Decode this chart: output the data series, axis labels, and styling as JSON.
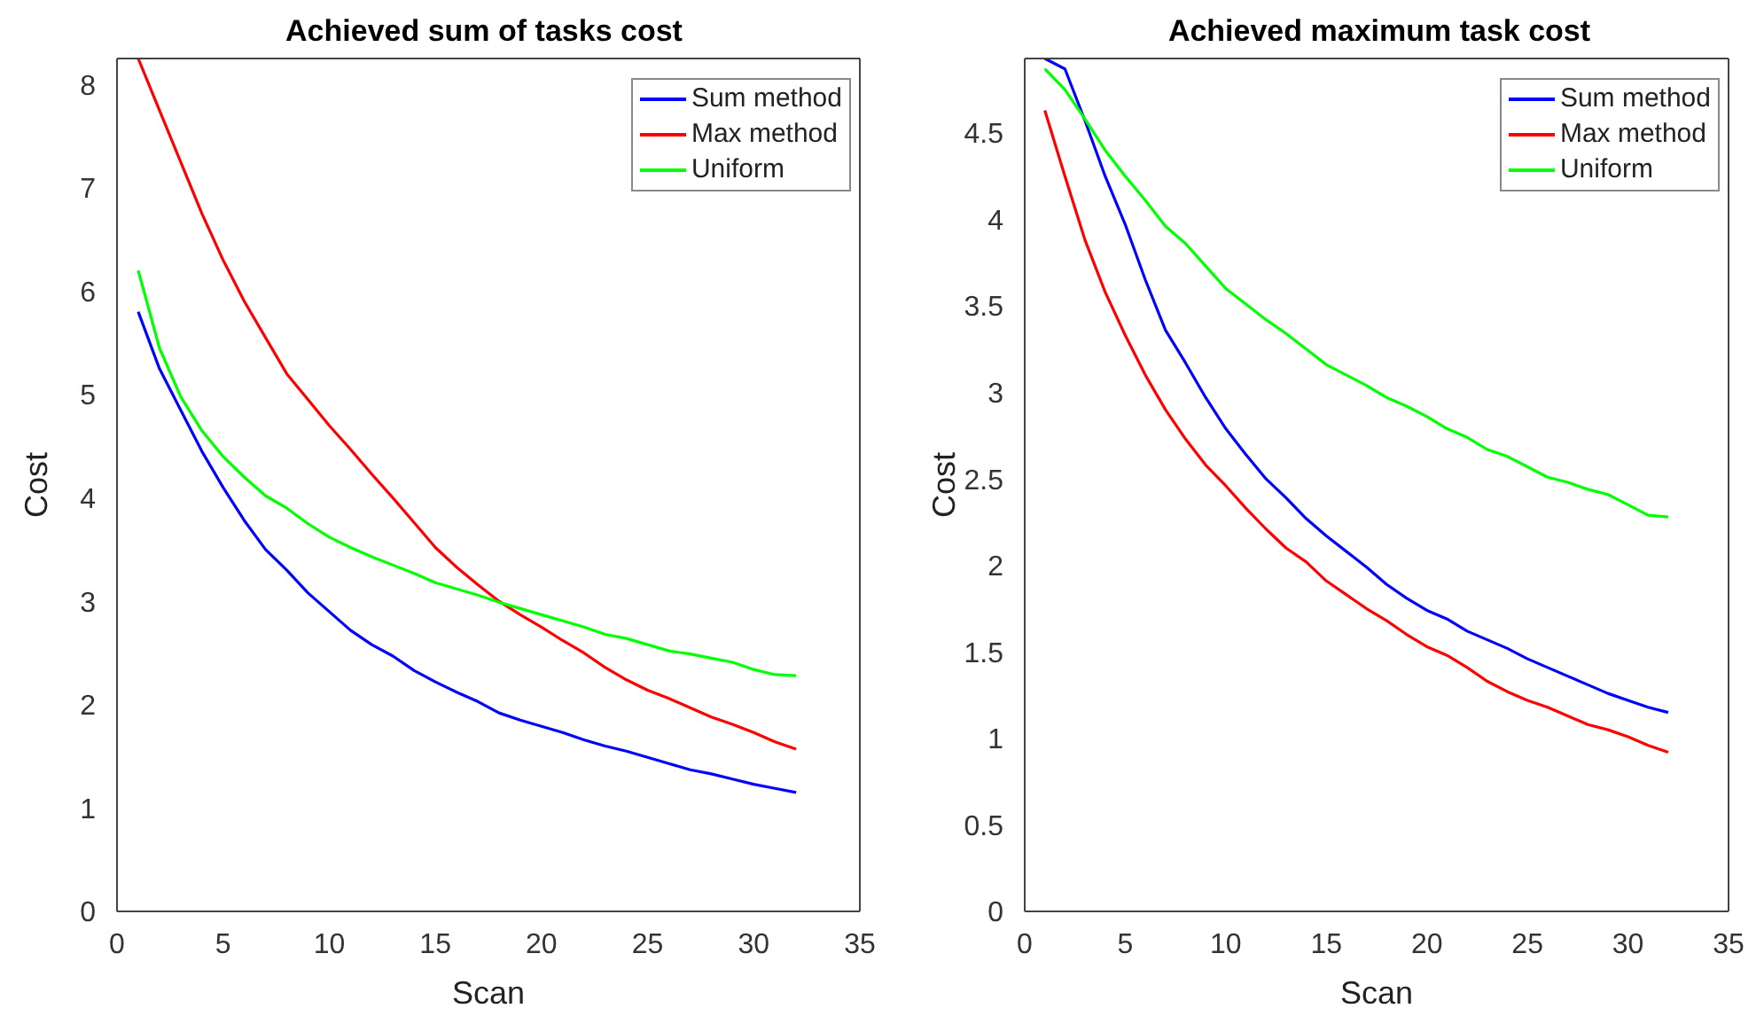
{
  "chart_data": [
    {
      "type": "line",
      "title": "Achieved sum of tasks cost",
      "xlabel": "Scan",
      "ylabel": "Cost",
      "x": [
        1,
        2,
        3,
        4,
        5,
        6,
        7,
        8,
        9,
        10,
        11,
        12,
        13,
        14,
        15,
        16,
        17,
        18,
        19,
        20,
        21,
        22,
        23,
        24,
        25,
        26,
        27,
        28,
        29,
        30,
        31,
        32
      ],
      "series": [
        {
          "name": "Sum method",
          "color": "#0000ff",
          "values": [
            5.8,
            5.25,
            4.85,
            4.45,
            4.1,
            3.78,
            3.5,
            3.3,
            3.08,
            2.9,
            2.72,
            2.58,
            2.47,
            2.33,
            2.22,
            2.12,
            2.03,
            1.92,
            1.85,
            1.79,
            1.73,
            1.66,
            1.6,
            1.55,
            1.49,
            1.43,
            1.37,
            1.33,
            1.28,
            1.23,
            1.19,
            1.15
          ]
        },
        {
          "name": "Max method",
          "color": "#ff0000",
          "values": [
            8.25,
            7.75,
            7.25,
            6.75,
            6.3,
            5.9,
            5.55,
            5.2,
            4.95,
            4.7,
            4.47,
            4.23,
            4.0,
            3.76,
            3.52,
            3.33,
            3.16,
            3.0,
            2.87,
            2.75,
            2.62,
            2.5,
            2.36,
            2.24,
            2.14,
            2.06,
            1.97,
            1.88,
            1.81,
            1.73,
            1.64,
            1.57
          ]
        },
        {
          "name": "Uniform",
          "color": "#00ff00",
          "values": [
            6.2,
            5.45,
            4.98,
            4.65,
            4.4,
            4.2,
            4.02,
            3.9,
            3.75,
            3.62,
            3.52,
            3.43,
            3.35,
            3.27,
            3.18,
            3.12,
            3.06,
            2.99,
            2.93,
            2.87,
            2.81,
            2.75,
            2.68,
            2.64,
            2.58,
            2.52,
            2.49,
            2.45,
            2.41,
            2.34,
            2.29,
            2.28
          ]
        }
      ],
      "xlim": [
        0,
        35
      ],
      "xticks": [
        0,
        5,
        10,
        15,
        20,
        25,
        30,
        35
      ],
      "ylim": [
        0,
        8.25
      ],
      "yticks": [
        0,
        1,
        2,
        3,
        4,
        5,
        6,
        7,
        8
      ],
      "grid": false,
      "legend": "top right",
      "line_style": "solid",
      "marker": "none"
    },
    {
      "type": "line",
      "title": "Achieved maximum task cost",
      "xlabel": "Scan",
      "ylabel": "Cost",
      "x": [
        1,
        2,
        3,
        4,
        5,
        6,
        7,
        8,
        9,
        10,
        11,
        12,
        13,
        14,
        15,
        16,
        17,
        18,
        19,
        20,
        21,
        22,
        23,
        24,
        25,
        26,
        27,
        28,
        29,
        30,
        31,
        32
      ],
      "series": [
        {
          "name": "Sum method",
          "color": "#0000ff",
          "values": [
            4.93,
            4.87,
            4.57,
            4.25,
            3.97,
            3.65,
            3.36,
            3.17,
            2.97,
            2.79,
            2.64,
            2.5,
            2.39,
            2.27,
            2.17,
            2.08,
            1.99,
            1.89,
            1.81,
            1.74,
            1.69,
            1.62,
            1.57,
            1.52,
            1.46,
            1.41,
            1.36,
            1.31,
            1.26,
            1.22,
            1.18,
            1.15
          ]
        },
        {
          "name": "Max method",
          "color": "#ff0000",
          "values": [
            4.63,
            4.25,
            3.88,
            3.58,
            3.33,
            3.1,
            2.9,
            2.73,
            2.58,
            2.46,
            2.33,
            2.21,
            2.1,
            2.02,
            1.91,
            1.83,
            1.75,
            1.68,
            1.6,
            1.53,
            1.48,
            1.41,
            1.33,
            1.27,
            1.22,
            1.18,
            1.13,
            1.08,
            1.05,
            1.01,
            0.96,
            0.92
          ]
        },
        {
          "name": "Uniform",
          "color": "#00ff00",
          "values": [
            4.87,
            4.75,
            4.58,
            4.4,
            4.25,
            4.11,
            3.96,
            3.86,
            3.73,
            3.6,
            3.51,
            3.42,
            3.34,
            3.25,
            3.16,
            3.1,
            3.04,
            2.97,
            2.92,
            2.86,
            2.79,
            2.74,
            2.67,
            2.63,
            2.57,
            2.51,
            2.48,
            2.44,
            2.41,
            2.35,
            2.29,
            2.28
          ]
        }
      ],
      "xlim": [
        0,
        35
      ],
      "xticks": [
        0,
        5,
        10,
        15,
        20,
        25,
        30,
        35
      ],
      "ylim": [
        0,
        4.93
      ],
      "yticks": [
        0,
        0.5,
        1,
        1.5,
        2,
        2.5,
        3,
        3.5,
        4,
        4.5
      ],
      "grid": false,
      "legend": "top right",
      "line_style": "solid",
      "marker": "none"
    }
  ]
}
